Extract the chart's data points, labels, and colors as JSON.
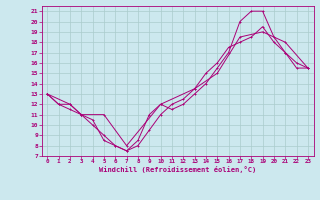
{
  "xlabel": "Windchill (Refroidissement éolien,°C)",
  "background_color": "#cce8ee",
  "line_color": "#aa0077",
  "grid_color": "#aacccc",
  "xlim": [
    -0.5,
    23.5
  ],
  "ylim": [
    7,
    21.5
  ],
  "xticks": [
    0,
    1,
    2,
    3,
    4,
    5,
    6,
    7,
    8,
    9,
    10,
    11,
    12,
    13,
    14,
    15,
    16,
    17,
    18,
    19,
    20,
    21,
    22,
    23
  ],
  "yticks": [
    7,
    8,
    9,
    10,
    11,
    12,
    13,
    14,
    15,
    16,
    17,
    18,
    19,
    20,
    21
  ],
  "curve1_x": [
    0,
    1,
    2,
    3,
    4,
    5,
    6,
    7,
    8,
    9,
    10,
    11,
    12,
    13,
    14,
    15,
    16,
    17,
    18,
    19,
    20,
    21,
    22,
    23
  ],
  "curve1_y": [
    13,
    12,
    12,
    11,
    10.5,
    8.5,
    8,
    7.5,
    8,
    9.5,
    11,
    12,
    12.5,
    13.5,
    15,
    16,
    17.5,
    18,
    18.5,
    19.5,
    18,
    17,
    15.5,
    15.5
  ],
  "curve2_x": [
    0,
    1,
    2,
    3,
    4,
    5,
    6,
    7,
    8,
    9,
    10,
    11,
    12,
    13,
    14,
    15,
    16,
    17,
    18,
    19,
    20,
    21,
    22,
    23
  ],
  "curve2_y": [
    13,
    12,
    11.5,
    11,
    10,
    9,
    8,
    7.5,
    8.5,
    11,
    12,
    11.5,
    12,
    13,
    14,
    15.5,
    17,
    20,
    21,
    21,
    18.5,
    17,
    16,
    15.5
  ],
  "curve3_x": [
    0,
    2,
    3,
    5,
    7,
    10,
    13,
    15,
    17,
    19,
    21,
    23
  ],
  "curve3_y": [
    13,
    12,
    11,
    11,
    8,
    12,
    13.5,
    15,
    18.5,
    19,
    18,
    15.5
  ]
}
